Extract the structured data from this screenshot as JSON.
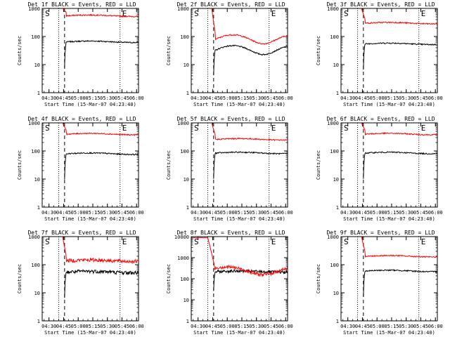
{
  "chart_data": [
    {
      "type": "line",
      "title": "Det 1f BLACK = Events, RED = LLD",
      "ylabel": "Counts/sec",
      "xlabel": "Start Time (15-Mar-07 04:23:40)",
      "yscale": "log",
      "ylim": [
        1,
        1000
      ],
      "ytick_labels": [
        "1",
        "10",
        "100",
        "1000"
      ],
      "xtick_labels": [
        "04:30",
        "04:45",
        "05:00",
        "05:15",
        "05:30",
        "05:45",
        "06:00"
      ],
      "markers": [
        "S",
        "E"
      ],
      "series": [
        {
          "name": "Events",
          "color": "#000000",
          "level": 65,
          "start": "04:45",
          "shape": "flat"
        },
        {
          "name": "LLD",
          "color": "#ff0000",
          "level": 550,
          "start": "04:45",
          "shape": "flat"
        }
      ]
    },
    {
      "type": "line",
      "title": "Det 2f BLACK = Events, RED = LLD",
      "ylabel": "Counts/sec",
      "xlabel": "Start Time (15-Mar-07 04:23:40)",
      "yscale": "log",
      "ylim": [
        1,
        1000
      ],
      "ytick_labels": [
        "1",
        "10",
        "100",
        "1000"
      ],
      "xtick_labels": [
        "04:30",
        "04:45",
        "05:00",
        "05:15",
        "05:30",
        "05:45",
        "06:00"
      ],
      "markers": [
        "S",
        "E"
      ],
      "series": [
        {
          "name": "Events",
          "color": "#000000",
          "level": 35,
          "start": "04:45",
          "shape": "wave"
        },
        {
          "name": "LLD",
          "color": "#ff0000",
          "level": 85,
          "start": "04:45",
          "shape": "wave"
        }
      ]
    },
    {
      "type": "line",
      "title": "Det 3f BLACK = Events, RED = LLD",
      "ylabel": "Counts/sec",
      "xlabel": "Start Time (15-Mar-07 04:23:40)",
      "yscale": "log",
      "ylim": [
        1,
        1000
      ],
      "ytick_labels": [
        "1",
        "10",
        "100",
        "1000"
      ],
      "xtick_labels": [
        "04:30",
        "04:45",
        "05:00",
        "05:15",
        "05:30",
        "05:45",
        "06:00"
      ],
      "markers": [
        "S",
        "E"
      ],
      "series": [
        {
          "name": "Events",
          "color": "#000000",
          "level": 55,
          "start": "04:45",
          "shape": "flat"
        },
        {
          "name": "LLD",
          "color": "#ff0000",
          "level": 300,
          "start": "04:45",
          "shape": "flat"
        }
      ]
    },
    {
      "type": "line",
      "title": "Det 4f BLACK = Events, RED = LLD",
      "ylabel": "Counts/sec",
      "xlabel": "Start Time (15-Mar-07 04:23:40)",
      "yscale": "log",
      "ylim": [
        1,
        1000
      ],
      "ytick_labels": [
        "1",
        "10",
        "100",
        "1000"
      ],
      "xtick_labels": [
        "04:30",
        "04:45",
        "05:00",
        "05:15",
        "05:30",
        "05:45",
        "06:00"
      ],
      "markers": [
        "S",
        "E"
      ],
      "series": [
        {
          "name": "Events",
          "color": "#000000",
          "level": 80,
          "start": "04:45",
          "shape": "flat"
        },
        {
          "name": "LLD",
          "color": "#ff0000",
          "level": 400,
          "start": "04:45",
          "shape": "flat"
        }
      ]
    },
    {
      "type": "line",
      "title": "Det 5f BLACK = Events, RED = LLD",
      "ylabel": "Counts/sec",
      "xlabel": "Start Time (15-Mar-07 04:23:40)",
      "yscale": "log",
      "ylim": [
        1,
        1000
      ],
      "ytick_labels": [
        "1",
        "10",
        "100",
        "1000"
      ],
      "xtick_labels": [
        "04:30",
        "04:45",
        "05:00",
        "05:15",
        "05:30",
        "05:45",
        "06:00"
      ],
      "markers": [
        "S",
        "E"
      ],
      "series": [
        {
          "name": "Events",
          "color": "#000000",
          "level": 85,
          "start": "04:45",
          "shape": "flat"
        },
        {
          "name": "LLD",
          "color": "#ff0000",
          "level": 260,
          "start": "04:45",
          "shape": "flat"
        }
      ]
    },
    {
      "type": "line",
      "title": "Det 6f BLACK = Events, RED = LLD",
      "ylabel": "Counts/sec",
      "xlabel": "Start Time (15-Mar-07 04:23:40)",
      "yscale": "log",
      "ylim": [
        1,
        1000
      ],
      "ytick_labels": [
        "1",
        "10",
        "100",
        "1000"
      ],
      "xtick_labels": [
        "04:30",
        "04:45",
        "05:00",
        "05:15",
        "05:30",
        "05:45",
        "06:00"
      ],
      "markers": [
        "S",
        "E"
      ],
      "series": [
        {
          "name": "Events",
          "color": "#000000",
          "level": 85,
          "start": "04:45",
          "shape": "flat"
        },
        {
          "name": "LLD",
          "color": "#ff0000",
          "level": 400,
          "start": "04:45",
          "shape": "flat"
        }
      ]
    },
    {
      "type": "line",
      "title": "Det 7f BLACK = Events, RED = LLD",
      "ylabel": "Counts/sec",
      "xlabel": "Start Time (15-Mar-07 04:23:40)",
      "yscale": "log",
      "ylim": [
        1,
        1000
      ],
      "ytick_labels": [
        "1",
        "10",
        "100",
        "1000"
      ],
      "xtick_labels": [
        "04:30",
        "04:45",
        "05:00",
        "05:15",
        "05:30",
        "05:45",
        "06:00"
      ],
      "markers": [
        "S",
        "E"
      ],
      "series": [
        {
          "name": "Events",
          "color": "#000000",
          "level": 55,
          "start": "04:45",
          "shape": "noisy"
        },
        {
          "name": "LLD",
          "color": "#ff0000",
          "level": 140,
          "start": "04:45",
          "shape": "noisy"
        }
      ]
    },
    {
      "type": "line",
      "title": "Det 8f BLACK = Events, RED = LLD",
      "ylabel": "Counts/sec",
      "xlabel": "Start Time (15-Mar-07 04:23:40)",
      "yscale": "log",
      "ylim": [
        1,
        10000
      ],
      "ytick_labels": [
        "1",
        "10",
        "100",
        "1000",
        "10000"
      ],
      "xtick_labels": [
        "04:30",
        "04:45",
        "05:00",
        "05:15",
        "05:30",
        "05:45",
        "06:00"
      ],
      "markers": [
        "S",
        "E"
      ],
      "series": [
        {
          "name": "Events",
          "color": "#000000",
          "level": 220,
          "start": "04:45",
          "shape": "noisy"
        },
        {
          "name": "LLD",
          "color": "#ff0000",
          "level": 260,
          "start": "04:30",
          "shape": "decay"
        }
      ]
    },
    {
      "type": "line",
      "title": "Det 9f BLACK = Events, RED = LLD",
      "ylabel": "Counts/sec",
      "xlabel": "Start Time (15-Mar-07 04:23:40)",
      "yscale": "log",
      "ylim": [
        1,
        1000
      ],
      "ytick_labels": [
        "1",
        "10",
        "100",
        "1000"
      ],
      "xtick_labels": [
        "04:30",
        "04:45",
        "05:00",
        "05:15",
        "05:30",
        "05:45",
        "06:00"
      ],
      "markers": [
        "S",
        "E"
      ],
      "series": [
        {
          "name": "Events",
          "color": "#000000",
          "level": 60,
          "start": "04:45",
          "shape": "flat"
        },
        {
          "name": "LLD",
          "color": "#ff0000",
          "level": 200,
          "start": "04:45",
          "shape": "flat"
        }
      ]
    }
  ]
}
